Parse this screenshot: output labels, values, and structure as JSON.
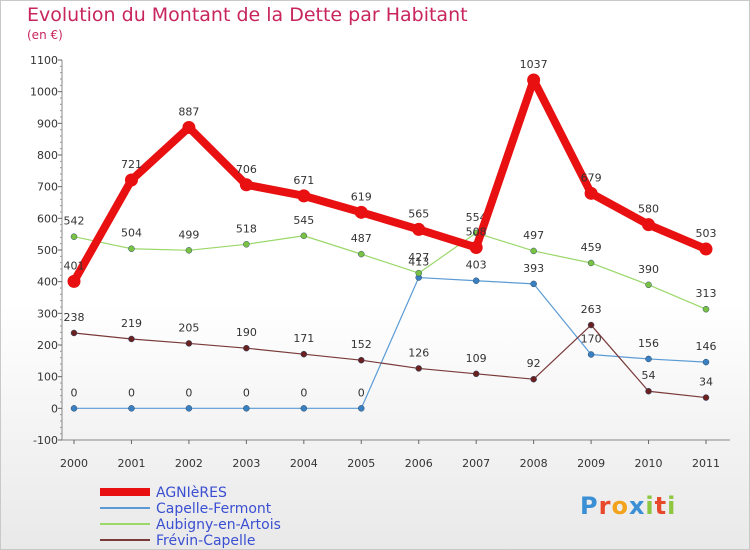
{
  "title": "Evolution du Montant de la Dette par Habitant",
  "subtitle": "(en €)",
  "brand": {
    "text": "Proxiti",
    "letters": [
      "P",
      "r",
      "o",
      "x",
      "i",
      "t",
      "i"
    ],
    "colors": [
      "#3b8fd4",
      "#e8492b",
      "#f2a21b",
      "#3b8fd4",
      "#8dc63f",
      "#e8492b",
      "#8dc63f"
    ]
  },
  "chart_data": {
    "type": "line",
    "x": [
      "2000",
      "2001",
      "2002",
      "2003",
      "2004",
      "2005",
      "2006",
      "2007",
      "2008",
      "2009",
      "2010",
      "2011"
    ],
    "ylim": [
      -100,
      1100
    ],
    "yticks": [
      "-100",
      "0",
      "100",
      "200",
      "300",
      "400",
      "500",
      "600",
      "700",
      "800",
      "900",
      "1000",
      "1100"
    ],
    "grid": false,
    "legend_position": "bottom-left",
    "series": [
      {
        "name": "Capelle-Fermont",
        "color": "#5b9bd5",
        "point_color": "#3a7fc0",
        "width": 1.2,
        "values": [
          0,
          0,
          0,
          0,
          0,
          0,
          413,
          403,
          393,
          170,
          156,
          146
        ],
        "labels": [
          "0",
          "0",
          "0",
          "0",
          "0",
          "0",
          "413",
          "403",
          "393",
          "170",
          "156",
          "146"
        ]
      },
      {
        "name": "Aubigny-en-Artois",
        "color": "#9bd86a",
        "point_color": "#7cc242",
        "width": 1.2,
        "values": [
          542,
          504,
          499,
          518,
          545,
          487,
          427,
          554,
          497,
          459,
          390,
          313
        ],
        "labels": [
          "542",
          "504",
          "499",
          "518",
          "545",
          "487",
          "427",
          "554",
          "497",
          "459",
          "390",
          "313"
        ]
      },
      {
        "name": "Frévin-Capelle",
        "color": "#7a3a3a",
        "point_color": "#6b2020",
        "width": 1.2,
        "values": [
          238,
          219,
          205,
          190,
          171,
          152,
          126,
          109,
          92,
          263,
          54,
          34
        ],
        "labels": [
          "238",
          "219",
          "205",
          "190",
          "171",
          "152",
          "126",
          "109",
          "92",
          "263",
          "54",
          "34"
        ]
      },
      {
        "name": "AGNIèRES",
        "color": "#e81010",
        "point_color": "#e81010",
        "width": 8,
        "values": [
          401,
          721,
          887,
          706,
          671,
          619,
          565,
          508,
          1037,
          679,
          580,
          503
        ],
        "labels": [
          "401",
          "721",
          "887",
          "706",
          "671",
          "619",
          "565",
          "508",
          "1037",
          "679",
          "580",
          "503"
        ]
      }
    ],
    "legend": [
      "AGNIèRES",
      "Capelle-Fermont",
      "Aubigny-en-Artois",
      "Frévin-Capelle"
    ]
  }
}
